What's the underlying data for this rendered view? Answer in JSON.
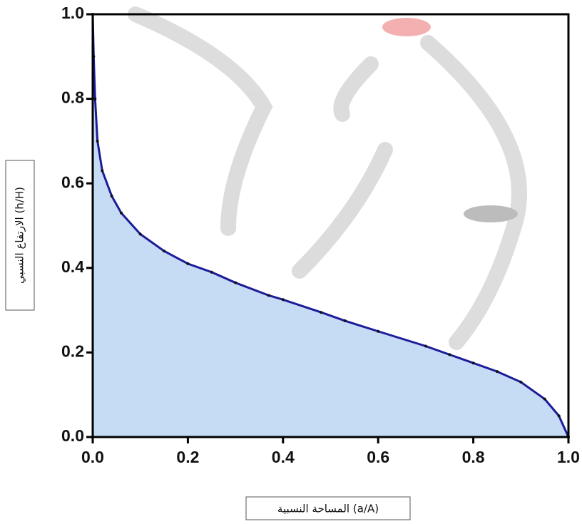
{
  "chart_data": {
    "type": "area",
    "x_label": "المساحة النسبية  (a/A)",
    "y_label": "الارتفاع النسبي (h/H)",
    "x": [
      0.0,
      0.002,
      0.005,
      0.01,
      0.02,
      0.04,
      0.06,
      0.1,
      0.15,
      0.2,
      0.25,
      0.3,
      0.37,
      0.4,
      0.48,
      0.53,
      0.6,
      0.7,
      0.75,
      0.8,
      0.85,
      0.9,
      0.95,
      0.98,
      1.0
    ],
    "values": [
      1.0,
      0.9,
      0.8,
      0.7,
      0.63,
      0.57,
      0.53,
      0.48,
      0.44,
      0.41,
      0.39,
      0.365,
      0.335,
      0.325,
      0.295,
      0.275,
      0.25,
      0.215,
      0.195,
      0.175,
      0.155,
      0.13,
      0.09,
      0.05,
      0.0
    ],
    "line_color": "#1c1c9a",
    "fill_color": "#c6dcf5",
    "xlim": [
      0,
      1
    ],
    "ylim": [
      0,
      1
    ],
    "xticks": [
      {
        "value": 0,
        "label": "0.0"
      },
      0.2,
      0.4,
      0.6,
      0.8,
      {
        "value": 1,
        "label": "1.0"
      }
    ],
    "yticks": [
      {
        "value": 0,
        "label": "0.0"
      },
      0.2,
      0.4,
      0.6,
      0.8,
      {
        "value": 1,
        "label": "1.0"
      }
    ],
    "grid": false
  }
}
